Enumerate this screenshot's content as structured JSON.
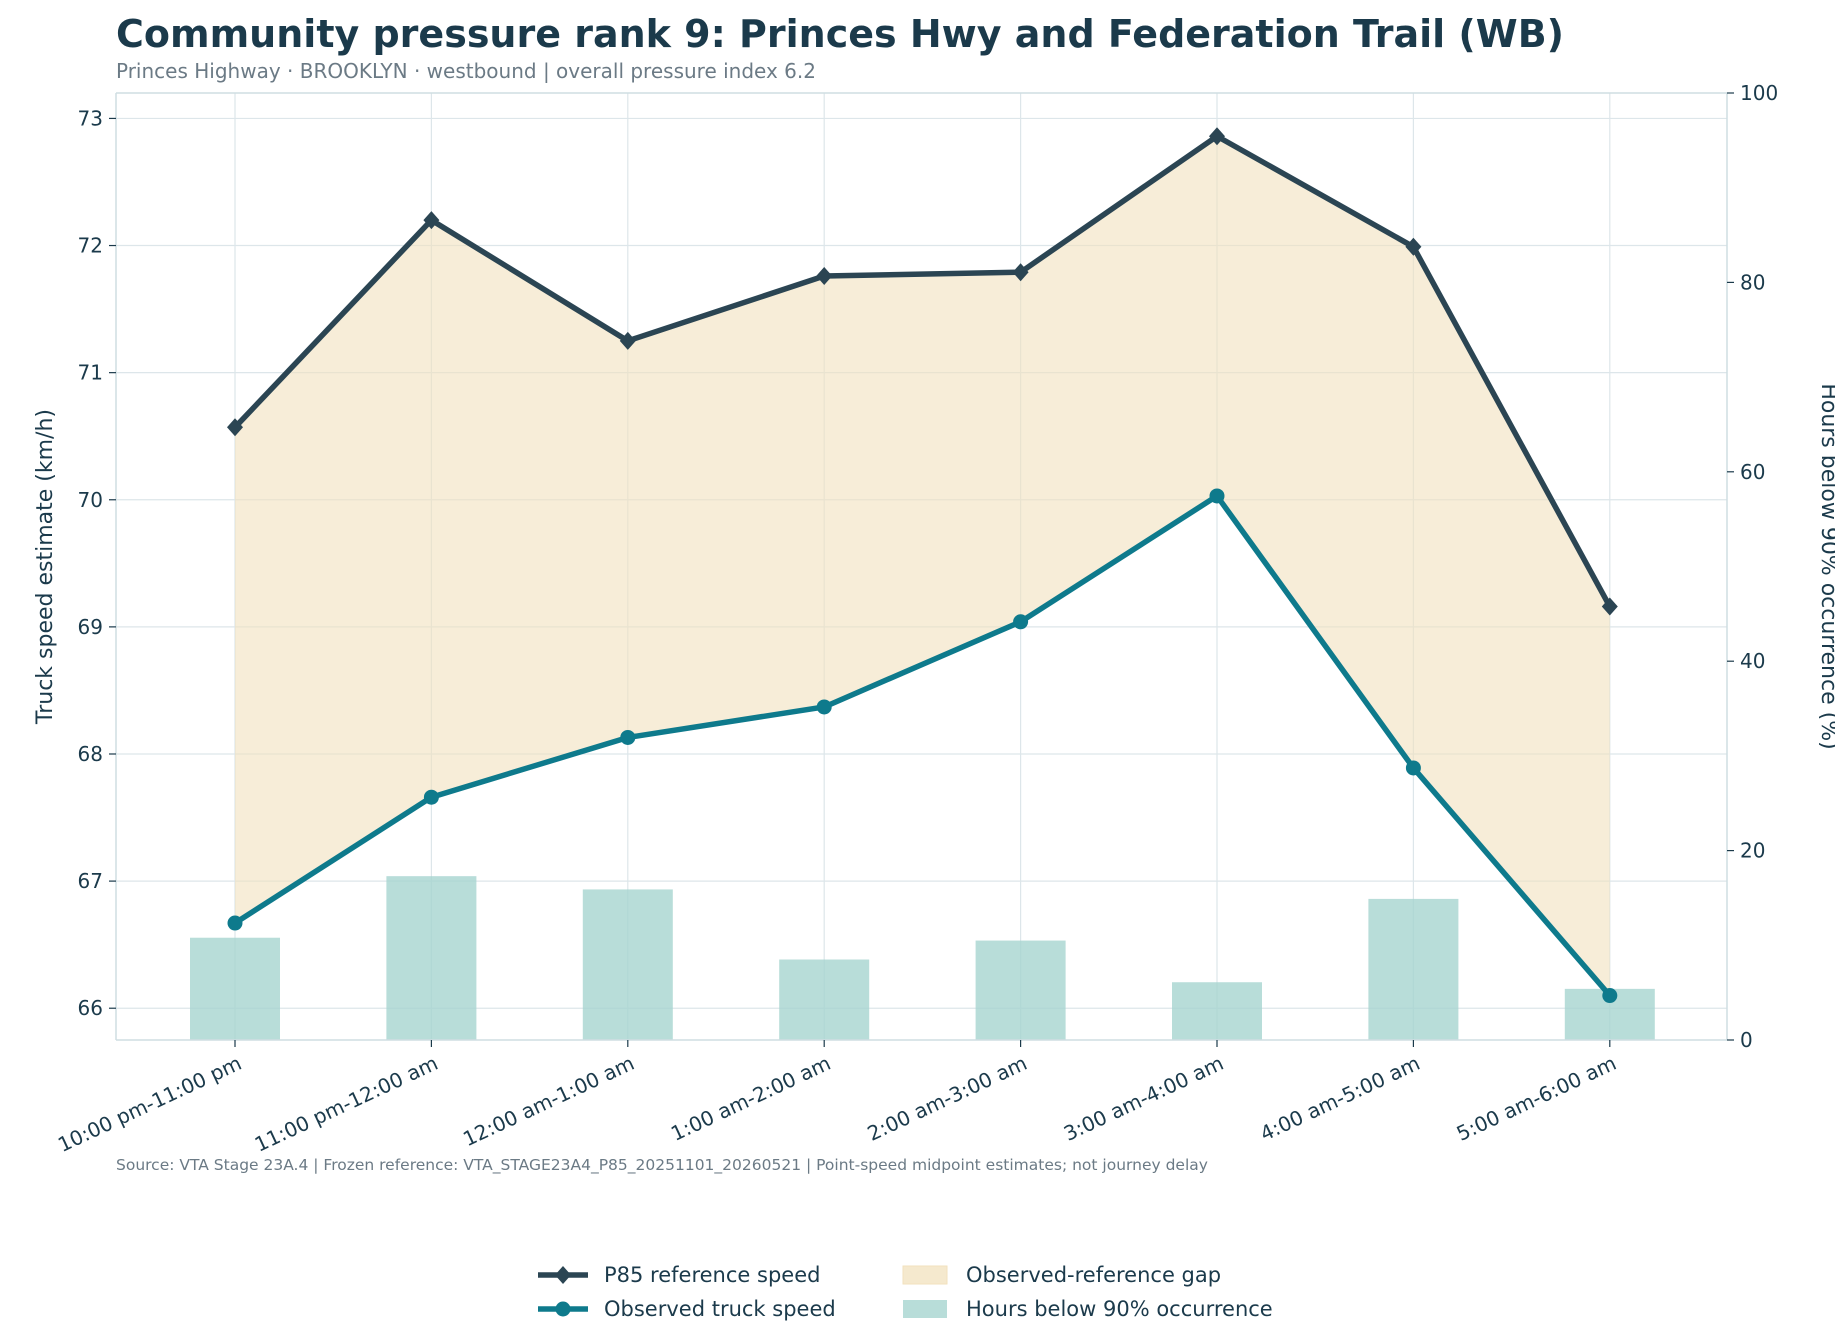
{
  "chart_data": {
    "type": "line",
    "title": "Community pressure rank 9: Princes Hwy and Federation Trail (WB)",
    "subtitle": "Princes Highway · BROOKLYN · westbound | overall pressure index 6.2",
    "source_note": "Source: VTA Stage 23A.4 | Frozen reference: VTA_STAGE23A4_P85_20251101_20260521 | Point-speed midpoint estimates; not journey delay",
    "categories": [
      "10:00 pm-11:00 pm",
      "11:00 pm-12:00 am",
      "12:00 am-1:00 am",
      "1:00 am-2:00 am",
      "2:00 am-3:00 am",
      "3:00 am-4:00 am",
      "4:00 am-5:00 am",
      "5:00 am-6:00 am"
    ],
    "ylabel": "Truck speed estimate (km/h)",
    "ylim": [
      65.75,
      73.2
    ],
    "yticks": [
      66,
      67,
      68,
      69,
      70,
      71,
      72,
      73
    ],
    "y2label": "Hours below 90% occurrence (%)",
    "y2lim": [
      0,
      100
    ],
    "y2ticks": [
      0,
      20,
      40,
      60,
      80,
      100
    ],
    "grid": true,
    "legend_position": "bottom-center",
    "series": [
      {
        "name": "P85 reference speed",
        "type": "line",
        "marker": "diamond",
        "color": "#2b4553",
        "axis": "left",
        "values": [
          70.57,
          72.2,
          71.25,
          71.76,
          71.79,
          72.86,
          71.99,
          69.16
        ]
      },
      {
        "name": "Observed truck speed",
        "type": "line",
        "marker": "circle",
        "color": "#0e7a8c",
        "axis": "left",
        "values": [
          66.67,
          67.66,
          68.13,
          68.37,
          69.04,
          70.03,
          67.89,
          66.1
        ]
      },
      {
        "name": "Observed-reference gap",
        "type": "area",
        "color": "#f2e1be",
        "axis": "left"
      },
      {
        "name": "Hours below 90% occurrence",
        "type": "bar",
        "color": "#a6d5d0",
        "axis": "right",
        "values": [
          10.8,
          17.3,
          15.9,
          8.5,
          10.5,
          6.1,
          14.9,
          5.4
        ]
      }
    ]
  }
}
